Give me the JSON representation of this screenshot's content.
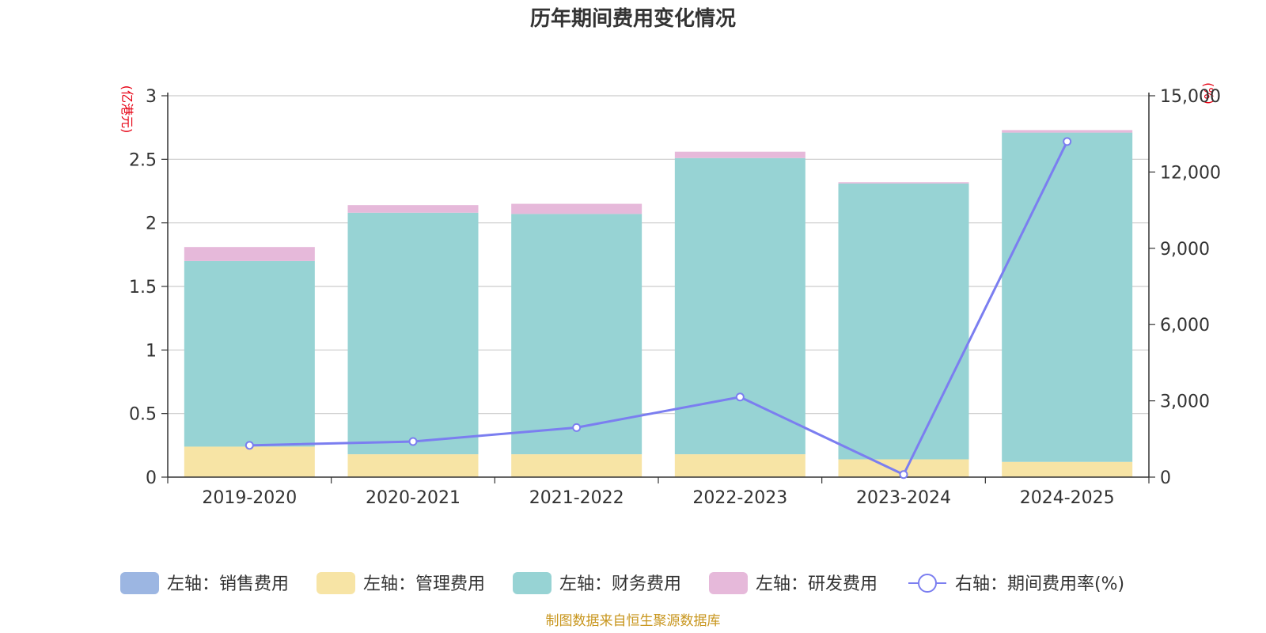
{
  "chart_data": {
    "type": "bar",
    "title": "历年期间费用变化情况",
    "categories": [
      "2019-2020",
      "2020-2021",
      "2021-2022",
      "2022-2023",
      "2023-2024",
      "2024-2025"
    ],
    "y_left": {
      "unit_label": "(亿港元)",
      "ylim": [
        0,
        3
      ],
      "ticks": [
        "0",
        "0.5",
        "1",
        "1.5",
        "2",
        "2.5",
        "3"
      ]
    },
    "y_right": {
      "unit_label": "(%)",
      "ylim": [
        0,
        15000
      ],
      "ticks": [
        "0",
        "3,000",
        "6,000",
        "9,000",
        "12,000",
        "15,000"
      ]
    },
    "series": [
      {
        "name": "左轴：销售费用",
        "axis": "left",
        "color": "#9cb6e2",
        "values": [
          0,
          0,
          0,
          0,
          0,
          0
        ]
      },
      {
        "name": "左轴：管理费用",
        "axis": "left",
        "color": "#f7e4a5",
        "values": [
          0.24,
          0.18,
          0.18,
          0.18,
          0.14,
          0.12
        ]
      },
      {
        "name": "左轴：财务费用",
        "axis": "left",
        "color": "#97d3d4",
        "values": [
          1.46,
          1.9,
          1.89,
          2.33,
          2.17,
          2.59
        ]
      },
      {
        "name": "左轴：研发费用",
        "axis": "left",
        "color": "#e6b9da",
        "values": [
          0.11,
          0.06,
          0.08,
          0.05,
          0.01,
          0.02
        ]
      },
      {
        "name": "右轴：期间费用率(%)",
        "axis": "right",
        "type": "line",
        "color": "#7b7ef0",
        "values": [
          1250,
          1400,
          1950,
          3150,
          100,
          13200
        ]
      }
    ],
    "grid": true,
    "legend_position": "bottom"
  },
  "footer": {
    "source": "制图数据来自恒生聚源数据库"
  }
}
